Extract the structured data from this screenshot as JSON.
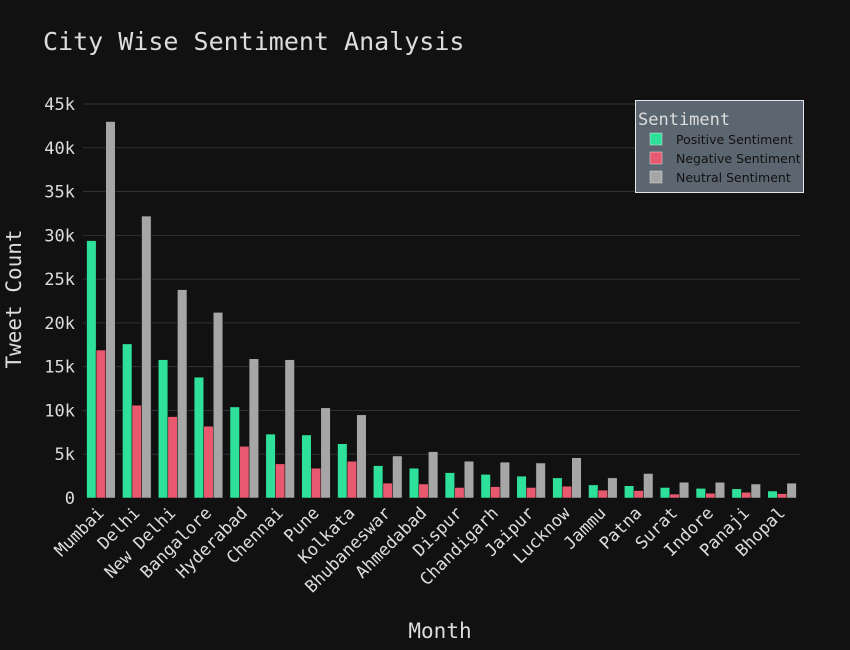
{
  "chart_data": {
    "type": "bar",
    "title": "City Wise Sentiment Analysis",
    "xlabel": "Month",
    "ylabel": "Tweet Count",
    "ylim": [
      0,
      45000
    ],
    "yticks": [
      0,
      5000,
      10000,
      15000,
      20000,
      25000,
      30000,
      35000,
      40000,
      45000
    ],
    "ytick_labels": [
      "0",
      "5k",
      "10k",
      "15k",
      "20k",
      "25k",
      "30k",
      "35k",
      "40k",
      "45k"
    ],
    "grid": true,
    "legend_title": "Sentiment",
    "legend_position": "top-right",
    "categories": [
      "Mumbai",
      "Delhi",
      "New Delhi",
      "Bangalore",
      "Hyderabad",
      "Chennai",
      "Pune",
      "Kolkata",
      "Bhubaneswar",
      "Ahmedabad",
      "Dispur",
      "Chandigarh",
      "Jaipur",
      "Lucknow",
      "Jammu",
      "Patna",
      "Surat",
      "Indore",
      "Panaji",
      "Bhopal"
    ],
    "series": [
      {
        "name": "Positive Sentiment",
        "color": "#2fe09a",
        "values": [
          29400,
          17600,
          15800,
          13800,
          10400,
          7300,
          7200,
          6200,
          3700,
          3400,
          2900,
          2700,
          2500,
          2300,
          1500,
          1400,
          1200,
          1100,
          1050,
          800
        ]
      },
      {
        "name": "Negative Sentiment",
        "color": "#e8596f",
        "values": [
          16900,
          10600,
          9300,
          8200,
          5900,
          3900,
          3400,
          4200,
          1700,
          1600,
          1200,
          1300,
          1200,
          1350,
          900,
          850,
          450,
          550,
          650,
          500
        ]
      },
      {
        "name": "Neutral Sentiment",
        "color": "#a6a6a6",
        "values": [
          43000,
          32200,
          23800,
          21200,
          15900,
          15800,
          10300,
          9500,
          4800,
          5300,
          4200,
          4100,
          4000,
          4600,
          2300,
          2800,
          1800,
          1800,
          1600,
          1700
        ]
      }
    ]
  }
}
